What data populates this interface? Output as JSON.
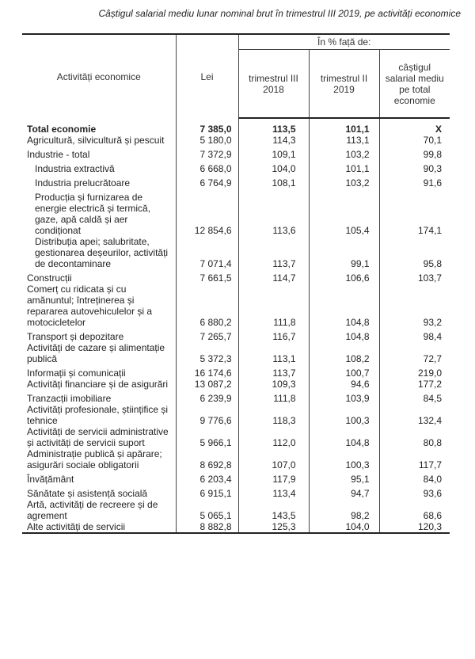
{
  "title": "Câștigul salarial mediu lunar nominal brut în trimestrul III 2019, pe activități economice",
  "header": {
    "activity": "Activități economice",
    "lei": "Lei",
    "pct_group": "În % față de:",
    "t3_2018": "trimestrul III 2018",
    "t2_2019": "trimestrul II 2019",
    "pct_total": "câștigul salarial mediu pe total economie"
  },
  "rows": [
    {
      "name": "Total economie",
      "lei": "7 385,0",
      "t3": "113,5",
      "t2": "101,1",
      "pct": "X"
    },
    {
      "name": "Agricultură, silvicultură și pescuit",
      "lei": "5 180,0",
      "t3": "114,3",
      "t2": "113,1",
      "pct": "70,1"
    },
    {
      "name": "Industrie - total",
      "lei": "7 372,9",
      "t3": "109,1",
      "t2": "103,2",
      "pct": "99,8"
    },
    {
      "name": "Industria extractivă",
      "lei": "6 668,0",
      "t3": "104,0",
      "t2": "101,1",
      "pct": "90,3"
    },
    {
      "name": "Industria prelucrătoare",
      "lei": "6 764,9",
      "t3": "108,1",
      "t2": "103,2",
      "pct": "91,6"
    },
    {
      "name": "Producția și furnizarea de energie electrică și termică, gaze, apă caldă și aer condiționat",
      "lei": "12 854,6",
      "t3": "113,6",
      "t2": "105,4",
      "pct": "174,1"
    },
    {
      "name": "Distribuția apei; salubritate, gestionarea deșeurilor, activități de decontaminare",
      "lei": "7 071,4",
      "t3": "113,7",
      "t2": "99,1",
      "pct": "95,8"
    },
    {
      "name": "Construcții",
      "lei": "7 661,5",
      "t3": "114,7",
      "t2": "106,6",
      "pct": "103,7"
    },
    {
      "name": "Comerț cu ridicata și cu amănuntul; întreținerea și repararea autovehiculelor și a motocicletelor",
      "lei": "6 880,2",
      "t3": "111,8",
      "t2": "104,8",
      "pct": "93,2"
    },
    {
      "name": "Transport și depozitare",
      "lei": "7 265,7",
      "t3": "116,7",
      "t2": "104,8",
      "pct": "98,4"
    },
    {
      "name": "Activități de cazare și alimentație publică",
      "lei": "5 372,3",
      "t3": "113,1",
      "t2": "108,2",
      "pct": "72,7"
    },
    {
      "name": "Informații și comunicații",
      "lei": "16 174,6",
      "t3": "113,7",
      "t2": "100,7",
      "pct": "219,0"
    },
    {
      "name": "Activități financiare și de asigurări",
      "lei": "13 087,2",
      "t3": "109,3",
      "t2": "94,6",
      "pct": "177,2"
    },
    {
      "name": "Tranzacții imobiliare",
      "lei": "6 239,9",
      "t3": "111,8",
      "t2": "103,9",
      "pct": "84,5"
    },
    {
      "name": "Activități profesionale, științifice și tehnice",
      "lei": "9 776,6",
      "t3": "118,3",
      "t2": "100,3",
      "pct": "132,4"
    },
    {
      "name": "Activități de servicii administrative și activități de servicii suport",
      "lei": "5 966,1",
      "t3": "112,0",
      "t2": "104,8",
      "pct": "80,8"
    },
    {
      "name": "Administrație publică și apărare; asigurări sociale obligatorii",
      "lei": "8 692,8",
      "t3": "107,0",
      "t2": "100,3",
      "pct": "117,7"
    },
    {
      "name": "Învățământ",
      "lei": "6 203,4",
      "t3": "117,9",
      "t2": "95,1",
      "pct": "84,0"
    },
    {
      "name": "Sănătate și asistență socială",
      "lei": "6 915,1",
      "t3": "113,4",
      "t2": "94,7",
      "pct": "93,6"
    },
    {
      "name": "Artă, activități de recreere și de agrement",
      "lei": "5 065,1",
      "t3": "143,5",
      "t2": "98,2",
      "pct": "68,6"
    },
    {
      "name": "Alte activități de servicii",
      "lei": "8 882,8",
      "t3": "125,3",
      "t2": "104,0",
      "pct": "120,3"
    }
  ]
}
